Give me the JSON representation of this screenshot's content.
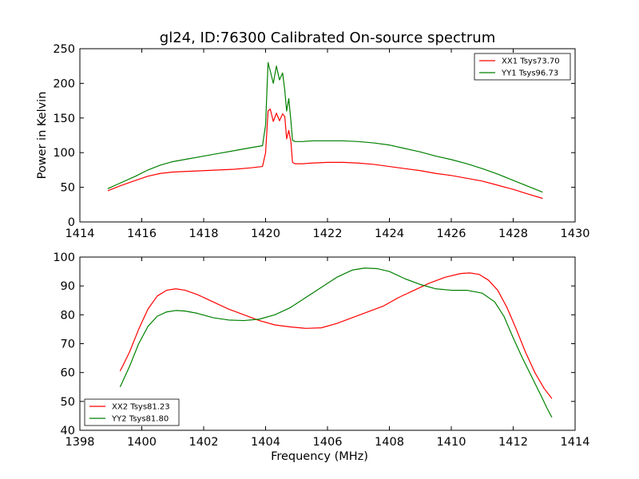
{
  "figure": {
    "title": "gl24, ID:76300 Calibrated On-source spectrum"
  },
  "chart_data": [
    {
      "type": "line",
      "title": "gl24, ID:76300 Calibrated On-source spectrum",
      "xlabel": "",
      "ylabel": "Power in Kelvin",
      "xlim": [
        1414,
        1430
      ],
      "ylim": [
        0,
        250
      ],
      "xticks": [
        1414,
        1416,
        1418,
        1420,
        1422,
        1424,
        1426,
        1428,
        1430
      ],
      "yticks": [
        0,
        50,
        100,
        150,
        200,
        250
      ],
      "grid": false,
      "legend_position": "top-right",
      "series": [
        {
          "name": "XX1 Tsys73.70",
          "color": "#ff0000",
          "x": [
            1414.9,
            1415.3,
            1415.8,
            1416.2,
            1416.6,
            1417.0,
            1417.5,
            1418.0,
            1418.5,
            1419.0,
            1419.5,
            1419.9,
            1420.0,
            1420.08,
            1420.15,
            1420.25,
            1420.35,
            1420.45,
            1420.55,
            1420.62,
            1420.68,
            1420.75,
            1420.82,
            1420.87,
            1420.95,
            1421.2,
            1421.5,
            1422.0,
            1422.5,
            1423.0,
            1423.5,
            1424.0,
            1424.5,
            1425.0,
            1425.5,
            1426.0,
            1426.5,
            1427.0,
            1427.5,
            1428.0,
            1428.5,
            1428.95
          ],
          "values": [
            45,
            52,
            60,
            66,
            70,
            72,
            73,
            74,
            75,
            76,
            78,
            80,
            100,
            160,
            163,
            145,
            157,
            146,
            156,
            152,
            120,
            132,
            115,
            86,
            84,
            84,
            85,
            86,
            86,
            85,
            83,
            80,
            77,
            74,
            70,
            67,
            63,
            59,
            53,
            47,
            40,
            34
          ]
        },
        {
          "name": "YY1 Tsys96.73",
          "color": "#008000",
          "x": [
            1414.9,
            1415.3,
            1415.8,
            1416.2,
            1416.6,
            1417.0,
            1417.5,
            1418.0,
            1418.5,
            1419.0,
            1419.5,
            1419.9,
            1420.0,
            1420.08,
            1420.15,
            1420.25,
            1420.35,
            1420.45,
            1420.55,
            1420.62,
            1420.68,
            1420.75,
            1420.82,
            1420.87,
            1420.95,
            1421.2,
            1421.5,
            1422.0,
            1422.5,
            1423.0,
            1423.5,
            1424.0,
            1424.5,
            1425.0,
            1425.5,
            1426.0,
            1426.5,
            1427.0,
            1427.5,
            1428.0,
            1428.5,
            1428.95
          ],
          "values": [
            48,
            56,
            66,
            75,
            82,
            87,
            91,
            95,
            99,
            103,
            107,
            110,
            140,
            230,
            218,
            200,
            225,
            205,
            215,
            190,
            160,
            178,
            145,
            118,
            116,
            116,
            117,
            117,
            117,
            116,
            114,
            111,
            106,
            101,
            95,
            90,
            84,
            77,
            69,
            60,
            51,
            43
          ]
        }
      ]
    },
    {
      "type": "line",
      "title": "",
      "xlabel": "Frequency (MHz)",
      "ylabel": "",
      "xlim": [
        1398,
        1414
      ],
      "ylim": [
        40,
        100
      ],
      "xticks": [
        1398,
        1400,
        1402,
        1404,
        1406,
        1408,
        1410,
        1412,
        1414
      ],
      "yticks": [
        40,
        50,
        60,
        70,
        80,
        90,
        100
      ],
      "grid": false,
      "legend_position": "bottom-left",
      "series": [
        {
          "name": "XX2 Tsys81.23",
          "color": "#ff0000",
          "x": [
            1399.3,
            1399.6,
            1399.9,
            1400.2,
            1400.5,
            1400.8,
            1401.1,
            1401.4,
            1401.8,
            1402.3,
            1402.8,
            1403.3,
            1403.8,
            1404.3,
            1404.8,
            1405.3,
            1405.8,
            1406.3,
            1406.8,
            1407.3,
            1407.8,
            1408.3,
            1408.8,
            1409.3,
            1409.8,
            1410.3,
            1410.6,
            1410.9,
            1411.2,
            1411.5,
            1411.8,
            1412.1,
            1412.4,
            1412.7,
            1413.0,
            1413.25
          ],
          "values": [
            60.5,
            67,
            75,
            82,
            86.5,
            88.5,
            89,
            88.5,
            87,
            84.5,
            82,
            80,
            78,
            76.5,
            75.8,
            75.3,
            75.5,
            77,
            79,
            81,
            83,
            86,
            88.5,
            91,
            93,
            94.3,
            94.5,
            94,
            92,
            88.5,
            82.5,
            75,
            67,
            60,
            54.5,
            51
          ]
        },
        {
          "name": "YY2 Tsys81.80",
          "color": "#008000",
          "x": [
            1399.3,
            1399.6,
            1399.9,
            1400.2,
            1400.5,
            1400.8,
            1401.1,
            1401.4,
            1401.8,
            1402.3,
            1402.8,
            1403.3,
            1403.8,
            1404.3,
            1404.8,
            1405.3,
            1405.8,
            1406.3,
            1406.8,
            1407.2,
            1407.6,
            1408.0,
            1408.5,
            1409.0,
            1409.5,
            1410.0,
            1410.5,
            1411.0,
            1411.4,
            1411.7,
            1412.0,
            1412.3,
            1412.6,
            1412.9,
            1413.1,
            1413.25
          ],
          "values": [
            55,
            62,
            70,
            76,
            79.5,
            81,
            81.5,
            81.3,
            80.5,
            79,
            78.2,
            78,
            78.5,
            80,
            82.5,
            86,
            89.5,
            93,
            95.5,
            96.2,
            96,
            95,
            92.5,
            90.5,
            89,
            88.5,
            88.5,
            87.5,
            84.5,
            79.5,
            72,
            65,
            58.5,
            52,
            47.5,
            44.5
          ]
        }
      ]
    }
  ]
}
